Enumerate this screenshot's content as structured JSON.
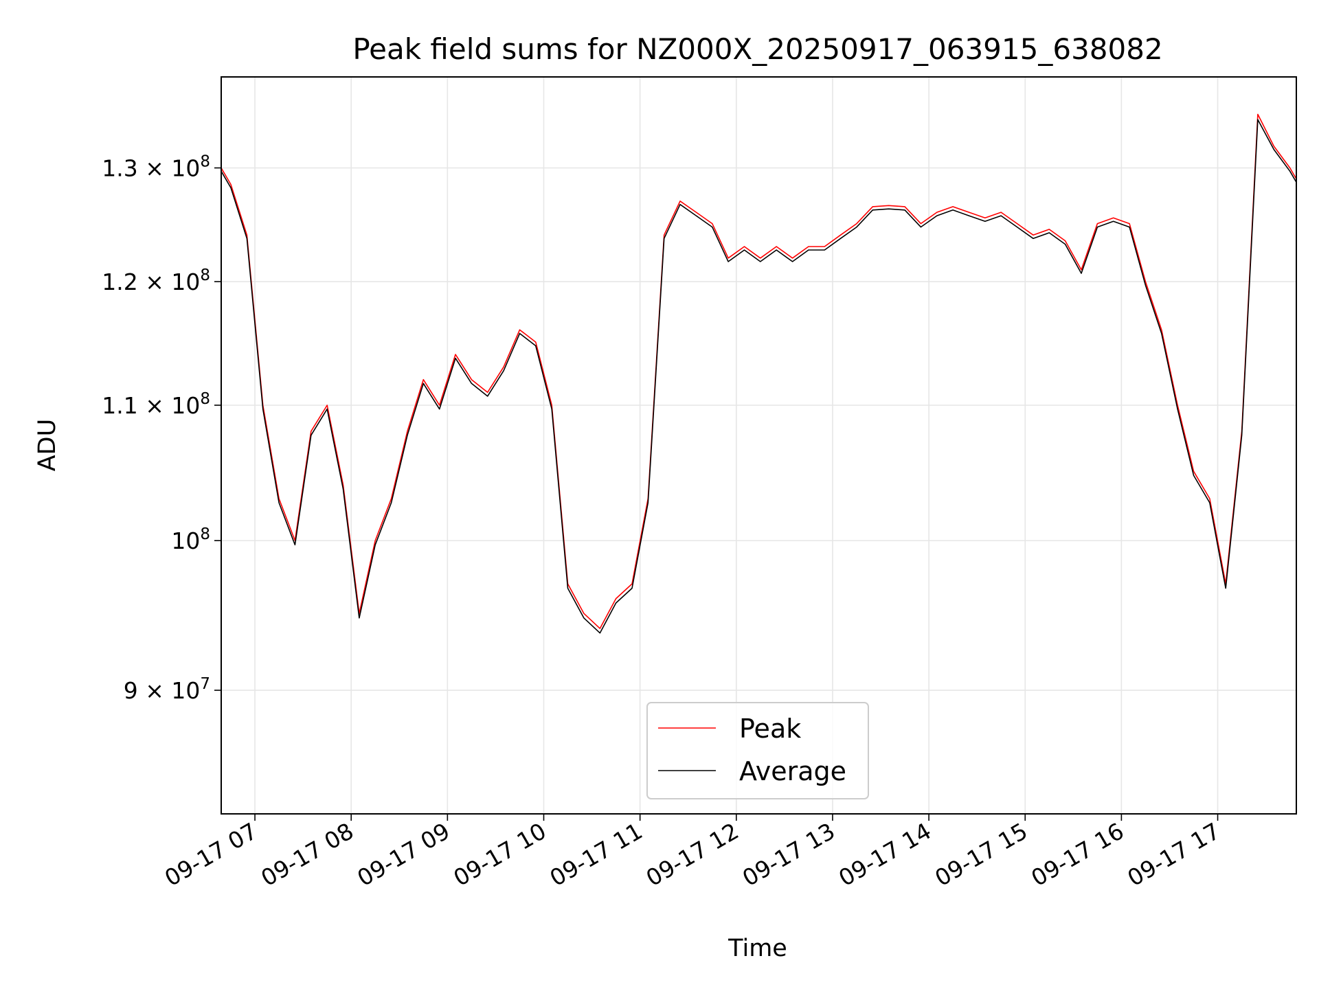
{
  "chart_data": {
    "type": "line",
    "title": "Peak field sums for NZ000X_20250917_063915_638082",
    "xlabel": "Time",
    "ylabel": "ADU",
    "x_ticks": [
      "09-17 07",
      "09-17 08",
      "09-17 09",
      "09-17 10",
      "09-17 11",
      "09-17 12",
      "09-17 13",
      "09-17 14",
      "09-17 15",
      "09-17 16",
      "09-17 17"
    ],
    "y_ticks": [
      {
        "value": 90000000,
        "mantissa": "9",
        "exponent": "7"
      },
      {
        "value": 100000000,
        "mantissa": "",
        "exponent": "8"
      },
      {
        "value": 110000000,
        "mantissa": "1.1",
        "exponent": "8"
      },
      {
        "value": 120000000,
        "mantissa": "1.2",
        "exponent": "8"
      },
      {
        "value": 130000000,
        "mantissa": "1.3",
        "exponent": "8"
      }
    ],
    "y_scale": "log",
    "xlim": [
      "2025-09-17 06:39",
      "2025-09-17 17:49"
    ],
    "ylim": [
      82500000,
      138600000
    ],
    "grid": true,
    "legend_position": "lower center",
    "colors": {
      "Peak": "#ff0000",
      "Average": "#000000"
    },
    "x": [
      "2025-09-17 06:39",
      "2025-09-17 06:45",
      "2025-09-17 06:55",
      "2025-09-17 07:05",
      "2025-09-17 07:15",
      "2025-09-17 07:25",
      "2025-09-17 07:35",
      "2025-09-17 07:45",
      "2025-09-17 07:55",
      "2025-09-17 08:05",
      "2025-09-17 08:15",
      "2025-09-17 08:25",
      "2025-09-17 08:35",
      "2025-09-17 08:45",
      "2025-09-17 08:55",
      "2025-09-17 09:05",
      "2025-09-17 09:15",
      "2025-09-17 09:25",
      "2025-09-17 09:35",
      "2025-09-17 09:45",
      "2025-09-17 09:55",
      "2025-09-17 10:05",
      "2025-09-17 10:15",
      "2025-09-17 10:25",
      "2025-09-17 10:35",
      "2025-09-17 10:45",
      "2025-09-17 10:55",
      "2025-09-17 11:05",
      "2025-09-17 11:15",
      "2025-09-17 11:25",
      "2025-09-17 11:35",
      "2025-09-17 11:45",
      "2025-09-17 11:55",
      "2025-09-17 12:05",
      "2025-09-17 12:15",
      "2025-09-17 12:25",
      "2025-09-17 12:35",
      "2025-09-17 12:45",
      "2025-09-17 12:55",
      "2025-09-17 13:05",
      "2025-09-17 13:15",
      "2025-09-17 13:25",
      "2025-09-17 13:35",
      "2025-09-17 13:45",
      "2025-09-17 13:55",
      "2025-09-17 14:05",
      "2025-09-17 14:15",
      "2025-09-17 14:25",
      "2025-09-17 14:35",
      "2025-09-17 14:45",
      "2025-09-17 14:55",
      "2025-09-17 15:05",
      "2025-09-17 15:15",
      "2025-09-17 15:25",
      "2025-09-17 15:35",
      "2025-09-17 15:45",
      "2025-09-17 15:55",
      "2025-09-17 16:05",
      "2025-09-17 16:15",
      "2025-09-17 16:25",
      "2025-09-17 16:35",
      "2025-09-17 16:45",
      "2025-09-17 16:55",
      "2025-09-17 17:05",
      "2025-09-17 17:15",
      "2025-09-17 17:25",
      "2025-09-17 17:35",
      "2025-09-17 17:45",
      "2025-09-17 17:49"
    ],
    "series": [
      {
        "name": "Peak",
        "values": [
          130000000,
          128500000,
          124000000,
          110000000,
          103000000,
          100000000,
          108000000,
          110000000,
          104000000,
          95000000,
          100000000,
          103000000,
          108000000,
          112000000,
          110000000,
          114000000,
          112000000,
          111000000,
          113000000,
          116000000,
          115000000,
          110000000,
          97000000,
          95000000,
          94000000,
          96000000,
          97000000,
          103000000,
          124000000,
          127000000,
          126000000,
          125000000,
          122000000,
          123000000,
          122000000,
          123000000,
          122000000,
          123000000,
          123000000,
          124000000,
          125000000,
          126500000,
          126600000,
          126500000,
          125000000,
          126000000,
          126500000,
          126000000,
          125500000,
          126000000,
          125000000,
          124000000,
          124500000,
          123500000,
          121000000,
          125000000,
          125500000,
          125000000,
          120000000,
          116000000,
          110000000,
          105000000,
          103000000,
          97000000,
          108000000,
          135000000,
          132000000,
          130000000,
          129000000
        ]
      },
      {
        "name": "Average",
        "values": [
          129700000,
          128200000,
          123700000,
          109700000,
          102700000,
          99700000,
          107700000,
          109700000,
          103700000,
          94700000,
          99700000,
          102700000,
          107700000,
          111700000,
          109700000,
          113700000,
          111700000,
          110700000,
          112700000,
          115700000,
          114700000,
          109700000,
          96700000,
          94700000,
          93700000,
          95700000,
          96700000,
          102700000,
          123700000,
          126700000,
          125700000,
          124700000,
          121700000,
          122700000,
          121700000,
          122700000,
          121700000,
          122700000,
          122700000,
          123700000,
          124700000,
          126200000,
          126300000,
          126200000,
          124700000,
          125700000,
          126200000,
          125700000,
          125200000,
          125700000,
          124700000,
          123700000,
          124200000,
          123200000,
          120700000,
          124700000,
          125200000,
          124700000,
          119700000,
          115700000,
          109700000,
          104700000,
          102700000,
          96700000,
          107700000,
          134500000,
          131700000,
          129700000,
          128700000
        ]
      }
    ]
  }
}
